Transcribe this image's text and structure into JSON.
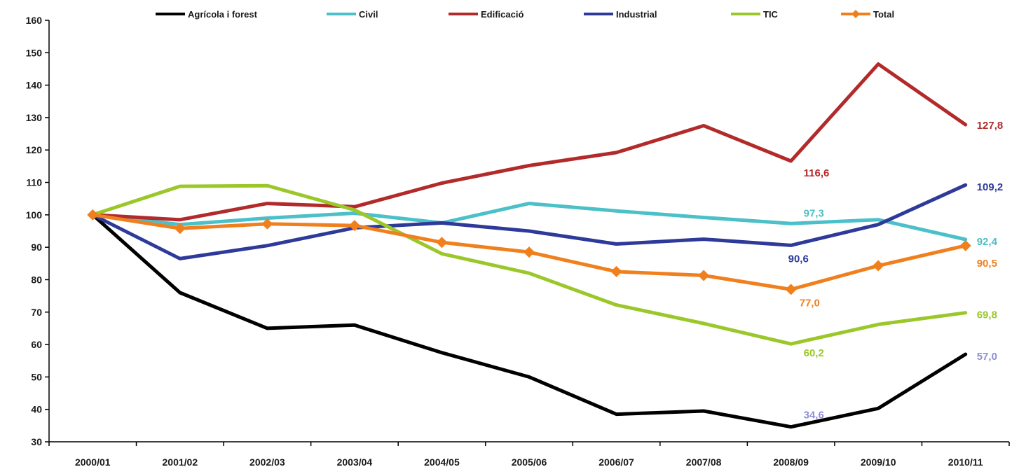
{
  "chart_data": {
    "type": "line",
    "categories": [
      "2000/01",
      "2001/02",
      "2002/03",
      "2003/04",
      "2004/05",
      "2005/06",
      "2006/07",
      "2007/08",
      "2008/09",
      "2009/10",
      "2010/11"
    ],
    "ylim": [
      30,
      160
    ],
    "yticks": [
      "30",
      "40",
      "50",
      "60",
      "70",
      "80",
      "90",
      "100",
      "110",
      "120",
      "130",
      "140",
      "150",
      "160"
    ],
    "legend_position": "top",
    "grid": false,
    "series": [
      {
        "name": "Agrícola i forest",
        "color": "#000000",
        "values": [
          100,
          76,
          65,
          66,
          57.5,
          50,
          38.5,
          39.5,
          34.6,
          40.3,
          57.0
        ]
      },
      {
        "name": "Civil",
        "color": "#4bc0c8",
        "values": [
          100,
          97,
          99,
          100.5,
          97.5,
          103.5,
          101.2,
          99.2,
          97.3,
          98.5,
          92.4
        ]
      },
      {
        "name": "Edificació",
        "color": "#b22a2a",
        "values": [
          100,
          98.5,
          103.5,
          102.5,
          109.8,
          115.2,
          119.2,
          127.5,
          116.6,
          146.5,
          127.8
        ]
      },
      {
        "name": "Industrial",
        "color": "#2e3a9a",
        "values": [
          100,
          86.5,
          90.5,
          96,
          97.5,
          95,
          91,
          92.5,
          90.6,
          97,
          109.2
        ]
      },
      {
        "name": "TIC",
        "color": "#9cc72a",
        "values": [
          100,
          108.8,
          109,
          101.5,
          88,
          82,
          72.2,
          66.5,
          60.2,
          66.2,
          69.8
        ]
      },
      {
        "name": "Total",
        "color": "#f0801e",
        "marker": "diamond",
        "values": [
          100,
          95.8,
          97.2,
          96.7,
          91.5,
          88.5,
          82.5,
          81.3,
          77.0,
          84.3,
          90.5
        ]
      }
    ],
    "annotations": [
      {
        "text": "127,8",
        "color": "#b22a2a",
        "cat_index": 10,
        "value": 127.8
      },
      {
        "text": "116,6",
        "color": "#b22a2a",
        "cat_index": 8,
        "value": 116.6
      },
      {
        "text": "109,2",
        "color": "#2e3a9a",
        "cat_index": 10,
        "value": 109.2
      },
      {
        "text": "97,3",
        "color": "#4bc0c8",
        "cat_index": 8,
        "value": 97.3
      },
      {
        "text": "92,4",
        "color": "#4bc0c8",
        "cat_index": 10,
        "value": 92.4
      },
      {
        "text": "90,6",
        "color": "#2e3a9a",
        "cat_index": 8,
        "value": 90.6
      },
      {
        "text": "90,5",
        "color": "#f0801e",
        "cat_index": 10,
        "value": 90.5
      },
      {
        "text": "77,0",
        "color": "#f0801e",
        "cat_index": 8,
        "value": 77.0
      },
      {
        "text": "69,8",
        "color": "#9cc72a",
        "cat_index": 10,
        "value": 69.8
      },
      {
        "text": "60,2",
        "color": "#9cc72a",
        "cat_index": 8,
        "value": 60.2
      },
      {
        "text": "57,0",
        "color": "#8f8fd8",
        "cat_index": 10,
        "value": 57.0
      },
      {
        "text": "34,6",
        "color": "#8f8fd8",
        "cat_index": 8,
        "value": 34.6
      }
    ]
  }
}
